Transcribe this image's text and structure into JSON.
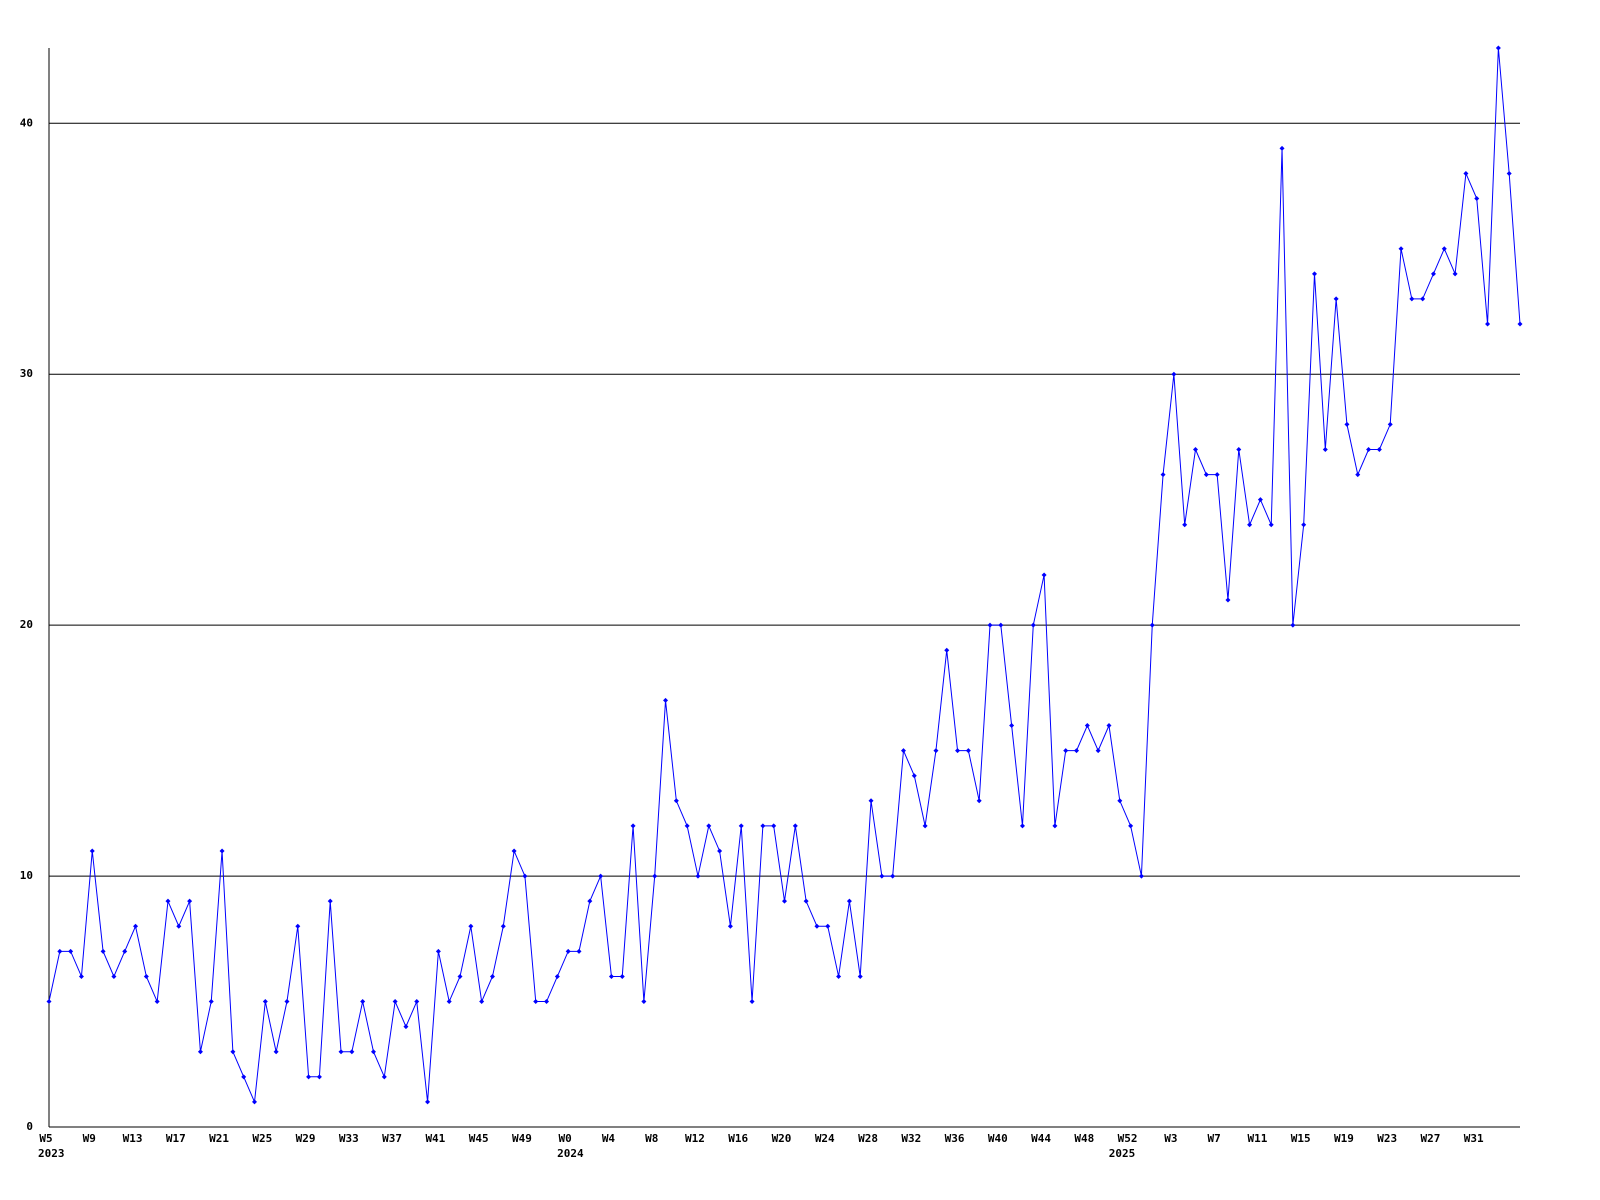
{
  "chart_data": {
    "type": "line",
    "categories": [
      "W5",
      null,
      null,
      null,
      "W9",
      null,
      null,
      null,
      "W13",
      null,
      null,
      null,
      "W17",
      null,
      null,
      null,
      "W21",
      null,
      null,
      null,
      "W25",
      null,
      null,
      null,
      "W29",
      null,
      null,
      null,
      "W33",
      null,
      null,
      null,
      "W37",
      null,
      null,
      null,
      "W41",
      null,
      null,
      null,
      "W45",
      null,
      null,
      null,
      "W49",
      null,
      null,
      null,
      "W0",
      null,
      null,
      null,
      "W4",
      null,
      null,
      null,
      "W8",
      null,
      null,
      null,
      "W12",
      null,
      null,
      null,
      "W16",
      null,
      null,
      null,
      "W20",
      null,
      null,
      null,
      "W24",
      null,
      null,
      null,
      "W28",
      null,
      null,
      null,
      "W32",
      null,
      null,
      null,
      "W36",
      null,
      null,
      null,
      "W40",
      null,
      null,
      null,
      "W44",
      null,
      null,
      null,
      "W48",
      null,
      null,
      null,
      "W52",
      null,
      null,
      null,
      "W3",
      null,
      null,
      null,
      "W7",
      null,
      null,
      null,
      "W11",
      null,
      null,
      null,
      "W15",
      null,
      null,
      null,
      "W19",
      null,
      null,
      null,
      "W23",
      null,
      null,
      null,
      "W27",
      null,
      null,
      null,
      "W31",
      null,
      null,
      null,
      null
    ],
    "category_years": [
      "2023",
      null,
      null,
      null,
      null,
      null,
      null,
      null,
      null,
      null,
      null,
      null,
      null,
      null,
      null,
      null,
      null,
      null,
      null,
      null,
      null,
      null,
      null,
      null,
      null,
      null,
      null,
      null,
      null,
      null,
      null,
      null,
      null,
      null,
      null,
      null,
      null,
      null,
      null,
      null,
      null,
      null,
      null,
      null,
      null,
      null,
      null,
      null,
      "2024",
      null,
      null,
      null,
      null,
      null,
      null,
      null,
      null,
      null,
      null,
      null,
      null,
      null,
      null,
      null,
      null,
      null,
      null,
      null,
      null,
      null,
      null,
      null,
      null,
      null,
      null,
      null,
      null,
      null,
      null,
      null,
      null,
      null,
      null,
      null,
      null,
      null,
      null,
      null,
      null,
      null,
      null,
      null,
      null,
      null,
      null,
      null,
      null,
      null,
      null,
      "2025",
      null,
      null,
      null,
      null,
      null,
      null,
      null,
      null,
      null,
      null,
      null,
      null,
      null,
      null,
      null,
      null,
      null,
      null,
      null,
      null,
      null,
      null,
      null,
      null,
      null,
      null,
      null,
      null,
      null,
      null,
      null,
      null,
      null,
      null,
      null
    ],
    "series": [
      {
        "color": "#0000ff",
        "values": [
          5,
          7,
          7,
          6,
          11,
          7,
          6,
          7,
          8,
          6,
          5,
          9,
          8,
          9,
          3,
          5,
          11,
          3,
          2,
          1,
          5,
          3,
          5,
          8,
          2,
          2,
          9,
          3,
          3,
          5,
          3,
          2,
          5,
          4,
          5,
          1,
          7,
          5,
          6,
          8,
          5,
          6,
          8,
          11,
          10,
          5,
          5,
          6,
          7,
          7,
          9,
          10,
          6,
          6,
          12,
          5,
          10,
          17,
          13,
          12,
          10,
          12,
          11,
          8,
          12,
          5,
          12,
          12,
          9,
          12,
          9,
          8,
          8,
          6,
          9,
          6,
          13,
          10,
          10,
          15,
          14,
          12,
          15,
          19,
          15,
          15,
          13,
          20,
          20,
          16,
          12,
          20,
          22,
          12,
          15,
          15,
          16,
          15,
          16,
          13,
          12,
          10,
          20,
          26,
          30,
          24,
          27,
          26,
          26,
          21,
          27,
          24,
          25,
          24,
          39,
          20,
          24,
          34,
          27,
          33,
          28,
          26,
          27,
          27,
          28,
          35,
          33,
          33,
          34,
          35,
          34,
          38,
          37,
          32,
          43,
          38,
          32
        ]
      }
    ],
    "ylim": [
      0,
      43
    ],
    "yticks": [
      0,
      10,
      20,
      30,
      40
    ],
    "grid": true,
    "grid_color": "#000000"
  }
}
